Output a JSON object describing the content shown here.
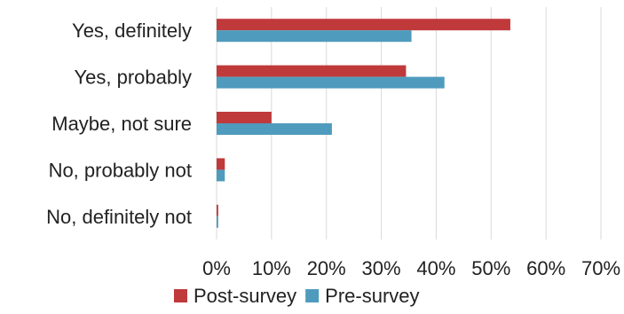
{
  "chart_data": {
    "type": "bar",
    "orientation": "horizontal",
    "categories": [
      "Yes, definitely",
      "Yes, probably",
      "Maybe, not sure",
      "No, probably not",
      "No, definitely not"
    ],
    "series": [
      {
        "name": "Post-survey",
        "color": "#c0393b",
        "values": [
          53.5,
          34.5,
          10.0,
          1.5,
          0.3
        ]
      },
      {
        "name": "Pre-survey",
        "color": "#4f9bbd",
        "values": [
          35.5,
          41.5,
          21.0,
          1.5,
          0.3
        ]
      }
    ],
    "title": "",
    "xlabel": "",
    "ylabel": "",
    "xlim": [
      0,
      70
    ],
    "ticks": [
      0,
      10,
      20,
      30,
      40,
      50,
      60,
      70
    ],
    "tick_labels": [
      "0%",
      "10%",
      "20%",
      "30%",
      "40%",
      "50%",
      "60%",
      "70%"
    ],
    "grid": "vertical",
    "legend": "bottom"
  }
}
